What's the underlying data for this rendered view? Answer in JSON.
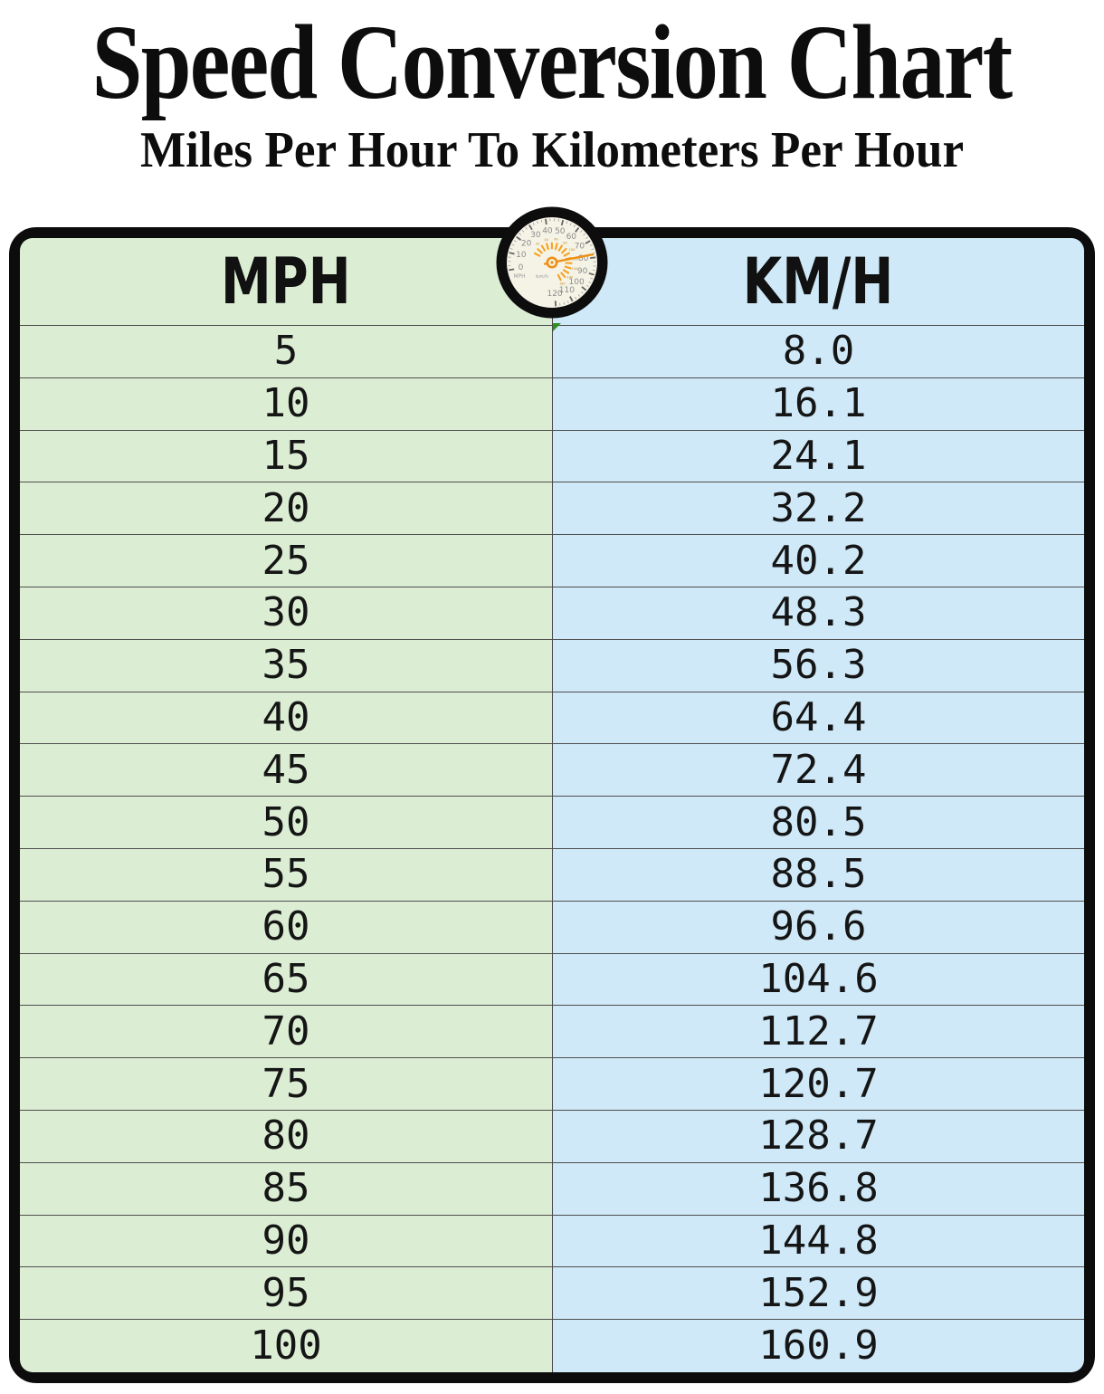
{
  "title": "Speed Conversion Chart",
  "subtitle": "Miles Per Hour To Kilometers Per Hour",
  "table": {
    "columns": [
      "MPH",
      "KM/H"
    ]
  },
  "chart_data": {
    "type": "table",
    "columns": [
      "MPH",
      "KM/H"
    ],
    "rows": [
      [
        "5",
        "8.0"
      ],
      [
        "10",
        "16.1"
      ],
      [
        "15",
        "24.1"
      ],
      [
        "20",
        "32.2"
      ],
      [
        "25",
        "40.2"
      ],
      [
        "30",
        "48.3"
      ],
      [
        "35",
        "56.3"
      ],
      [
        "40",
        "64.4"
      ],
      [
        "45",
        "72.4"
      ],
      [
        "50",
        "80.5"
      ],
      [
        "55",
        "88.5"
      ],
      [
        "60",
        "96.6"
      ],
      [
        "65",
        "104.6"
      ],
      [
        "70",
        "112.7"
      ],
      [
        "75",
        "120.7"
      ],
      [
        "80",
        "128.7"
      ],
      [
        "85",
        "136.8"
      ],
      [
        "90",
        "144.8"
      ],
      [
        "95",
        "152.9"
      ],
      [
        "100",
        "160.9"
      ]
    ]
  },
  "gauge": {
    "outer_unit": "MPH",
    "inner_unit": "km/h",
    "scale_labels": [
      0,
      10,
      20,
      30,
      40,
      50,
      60,
      70,
      80,
      90,
      100,
      110,
      120
    ],
    "needle_value": 78
  },
  "colors": {
    "mph_column_bg": "#dbeed4",
    "kmh_column_bg": "#cfe9f8",
    "grid_line": "#4a4a4a",
    "frame_black": "#0c0c0c",
    "gauge_face": "#f5f3e6",
    "gauge_accent": "#ef8f15",
    "gauge_scale_text": "#8c8c8c",
    "marker_green": "#2f8f1f"
  }
}
